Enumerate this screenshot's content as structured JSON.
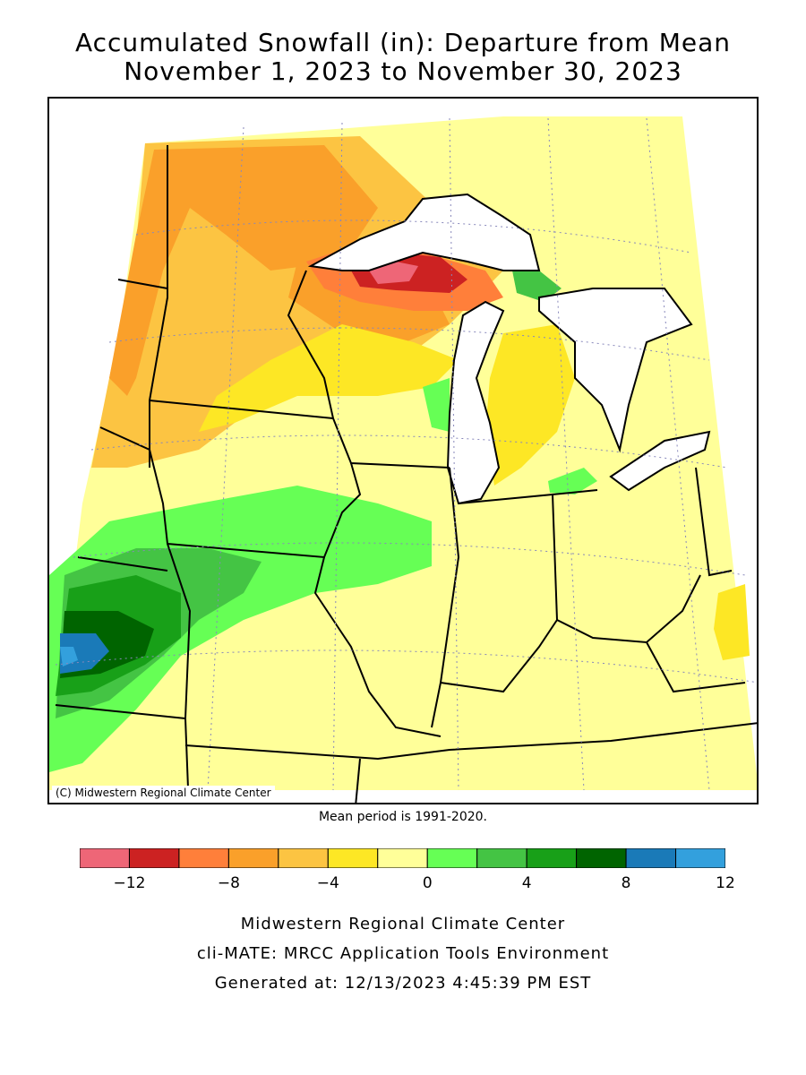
{
  "title": {
    "line1": "Accumulated Snowfall (in): Departure from Mean",
    "line2": "November 1, 2023 to November 30, 2023"
  },
  "map": {
    "copyright": "(C) Midwestern Regional Climate Center",
    "mean_period": "Mean period is 1991-2020."
  },
  "legend": {
    "ticks": [
      "-12",
      "-8",
      "-4",
      "0",
      "4",
      "8",
      "12"
    ],
    "bins": [
      {
        "range": "< -12",
        "color": "#ee6677"
      },
      {
        "range": "-12 to -10",
        "color": "#cc2222"
      },
      {
        "range": "-10 to -8",
        "color": "#ff7f3a"
      },
      {
        "range": "-8 to -6",
        "color": "#faa02a"
      },
      {
        "range": "-6 to -4",
        "color": "#fcc442"
      },
      {
        "range": "-4 to -2",
        "color": "#fde725"
      },
      {
        "range": "-2 to 0",
        "color": "#ffff99"
      },
      {
        "range": "0 to 2",
        "color": "#66ff55"
      },
      {
        "range": "2 to 4",
        "color": "#44c444"
      },
      {
        "range": "4 to 6",
        "color": "#18a018"
      },
      {
        "range": "6 to 8",
        "color": "#006400"
      },
      {
        "range": "8 to 10",
        "color": "#1a7ab8"
      },
      {
        "range": "10 to 12",
        "color": "#33a0dd"
      }
    ]
  },
  "footer": {
    "line1": "Midwestern Regional Climate Center",
    "line2": "cli-MATE: MRCC Application Tools Environment",
    "line3": "Generated at: 12/13/2023 4:45:39 PM EST"
  }
}
